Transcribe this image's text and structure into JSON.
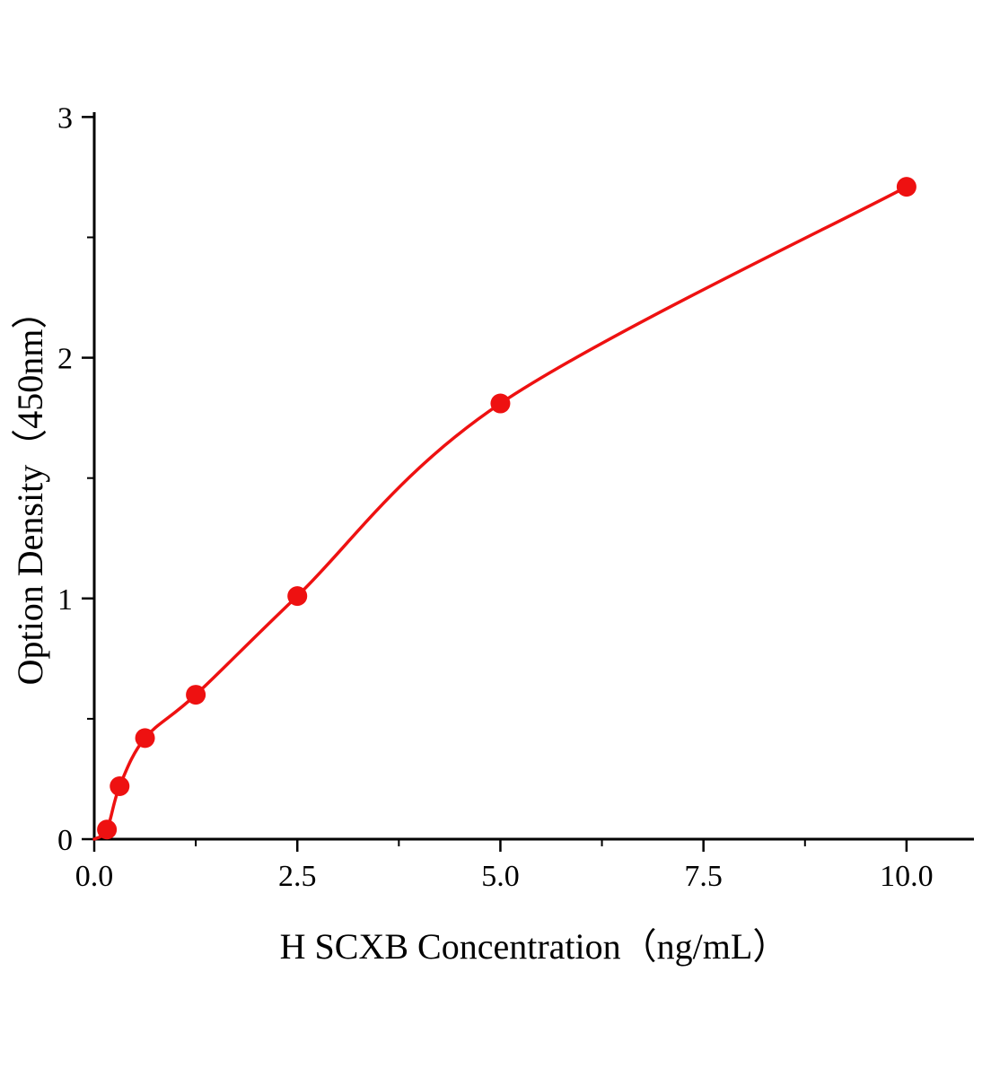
{
  "chart_data": {
    "type": "scatter",
    "title": "",
    "xlabel": "H SCXB Concentration（ng/mL）",
    "ylabel": "Option Density（450nm）",
    "x": [
      0.156,
      0.3125,
      0.625,
      1.25,
      2.5,
      5.0,
      10.0
    ],
    "y": [
      0.04,
      0.22,
      0.42,
      0.6,
      1.01,
      1.81,
      2.71
    ],
    "curve_start": {
      "x": 0,
      "y": 0
    },
    "xlim": [
      0,
      10.83
    ],
    "ylim": [
      0,
      3.02
    ],
    "x_tick_values": [
      0,
      2.5,
      5.0,
      7.5,
      10.0
    ],
    "x_tick_labels": [
      "0.0",
      "2.5",
      "5.0",
      "7.5",
      "10.0"
    ],
    "x_minor_ticks": [
      1.25,
      3.75,
      6.25,
      8.75
    ],
    "y_tick_values": [
      0,
      1,
      2,
      3
    ],
    "y_tick_labels": [
      "0",
      "1",
      "2",
      "3"
    ],
    "y_minor_ticks": [
      0.5,
      1.5,
      2.5
    ],
    "grid": false,
    "legend": "none",
    "colors": {
      "curve": "#ee1111",
      "marker": "#ee1111",
      "axis": "#000000",
      "tick_label": "#000000",
      "background": "#ffffff"
    }
  }
}
